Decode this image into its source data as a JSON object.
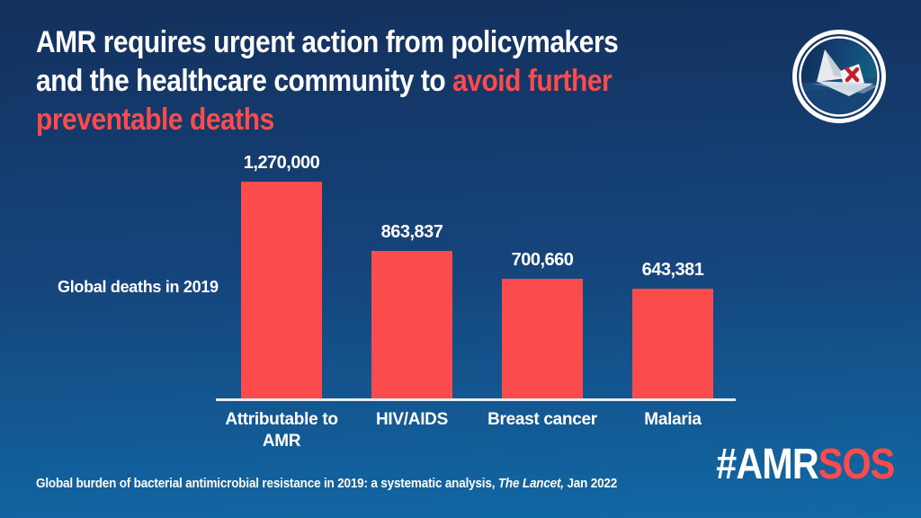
{
  "header": {
    "title_line1": "AMR requires urgent action from policymakers",
    "title_line2_white": "and the healthcare community to ",
    "title_line2_red": "avoid further",
    "title_line3_red": "preventable deaths"
  },
  "logo": {
    "name": "amr-sos-paper-boat-logo"
  },
  "chart_data": {
    "type": "bar",
    "title": "",
    "xlabel": "",
    "ylabel": "Global deaths in 2019",
    "categories": [
      "Attributable to AMR",
      "HIV/AIDS",
      "Breast cancer",
      "Malaria"
    ],
    "values": [
      1270000,
      863837,
      700660,
      643381
    ],
    "value_labels": [
      "1,270,000",
      "863,837",
      "700,660",
      "643,381"
    ],
    "ylim": [
      0,
      1270000
    ],
    "grid": false,
    "legend_position": "none",
    "bar_color": "#FB4B4D",
    "axis_color": "#E8EDF2"
  },
  "footer": {
    "source_text": "Global burden of bacterial antimicrobial resistance in 2019: a systematic analysis, ",
    "source_italic": "The Lancet,",
    "source_date": " Jan 2022",
    "hashtag_white": "#AMR",
    "hashtag_red": "SOS"
  },
  "colors": {
    "background_top": "#13305D",
    "background_bottom": "#1169A6",
    "accent_red": "#FB4B4D",
    "text_white": "#FFFFFF",
    "axis_line": "#E8EDF2",
    "logo_x_red": "#C21F2C"
  }
}
